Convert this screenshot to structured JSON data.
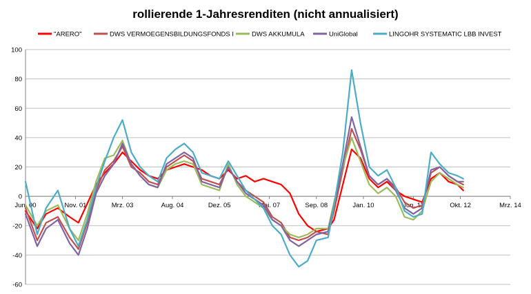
{
  "chart_data": {
    "type": "line",
    "title": "rollierende 1-Jahresrenditen (nicht annualisiert)",
    "xlabel": "",
    "ylabel": "",
    "ylim": [
      -60,
      100
    ],
    "y_ticks": [
      100,
      80,
      60,
      40,
      20,
      0,
      -20,
      -40,
      -60
    ],
    "x_range": [
      "2000-06",
      "2014-03"
    ],
    "x_ticks": [
      {
        "label": "Jun. 00",
        "date": "2000-06"
      },
      {
        "label": "Nov. 01",
        "date": "2001-11"
      },
      {
        "label": "Mrz. 03",
        "date": "2003-03"
      },
      {
        "label": "Aug. 04",
        "date": "2004-08"
      },
      {
        "label": "Dez. 05",
        "date": "2005-12"
      },
      {
        "label": "Mai. 07",
        "date": "2007-05"
      },
      {
        "label": "Sep. 08",
        "date": "2008-09"
      },
      {
        "label": "Jan. 10",
        "date": "2010-01"
      },
      {
        "label": "Jun. 11",
        "date": "2011-06"
      },
      {
        "label": "Okt. 12",
        "date": "2012-10"
      },
      {
        "label": "Mrz. 14",
        "date": "2014-03"
      }
    ],
    "grid": "horizontal",
    "legend_position": "top",
    "series": [
      {
        "name": "\"ARERO\"",
        "color": "#ff0000",
        "points": [
          [
            "2000-06",
            -10
          ],
          [
            "2000-10",
            -22
          ],
          [
            "2001-01",
            -12
          ],
          [
            "2001-05",
            -8
          ],
          [
            "2001-09",
            -14
          ],
          [
            "2001-12",
            -18
          ],
          [
            "2002-03",
            -5
          ],
          [
            "2002-06",
            8
          ],
          [
            "2002-09",
            16
          ],
          [
            "2002-12",
            22
          ],
          [
            "2003-03",
            30
          ],
          [
            "2003-06",
            24
          ],
          [
            "2003-09",
            18
          ],
          [
            "2003-12",
            14
          ],
          [
            "2004-03",
            12
          ],
          [
            "2004-06",
            18
          ],
          [
            "2004-09",
            20
          ],
          [
            "2004-12",
            22
          ],
          [
            "2005-03",
            20
          ],
          [
            "2005-06",
            18
          ],
          [
            "2005-09",
            14
          ],
          [
            "2005-12",
            12
          ],
          [
            "2006-03",
            18
          ],
          [
            "2006-06",
            12
          ],
          [
            "2006-09",
            14
          ],
          [
            "2006-12",
            10
          ],
          [
            "2007-03",
            12
          ],
          [
            "2007-06",
            10
          ],
          [
            "2007-09",
            8
          ],
          [
            "2007-12",
            2
          ],
          [
            "2008-03",
            -12
          ],
          [
            "2008-06",
            -20
          ],
          [
            "2008-09",
            -24
          ],
          [
            "2009-01",
            -22
          ],
          [
            "2009-03",
            -16
          ],
          [
            "2009-06",
            8
          ],
          [
            "2009-09",
            32
          ],
          [
            "2009-12",
            26
          ],
          [
            "2010-03",
            12
          ],
          [
            "2010-06",
            6
          ],
          [
            "2010-09",
            10
          ],
          [
            "2010-12",
            4
          ],
          [
            "2011-03",
            0
          ],
          [
            "2011-06",
            -2
          ],
          [
            "2011-09",
            -4
          ],
          [
            "2011-12",
            12
          ],
          [
            "2012-03",
            16
          ],
          [
            "2012-06",
            10
          ],
          [
            "2012-09",
            8
          ],
          [
            "2012-11",
            4
          ]
        ]
      },
      {
        "name": "DWS VERMOEGENSBILDUNGSFONDS  I",
        "color": "#c0504d",
        "points": [
          [
            "2000-06",
            -8
          ],
          [
            "2000-10",
            -30
          ],
          [
            "2001-01",
            -18
          ],
          [
            "2001-05",
            -14
          ],
          [
            "2001-09",
            -28
          ],
          [
            "2001-12",
            -36
          ],
          [
            "2002-03",
            -18
          ],
          [
            "2002-06",
            4
          ],
          [
            "2002-09",
            18
          ],
          [
            "2002-12",
            24
          ],
          [
            "2003-03",
            34
          ],
          [
            "2003-06",
            20
          ],
          [
            "2003-09",
            16
          ],
          [
            "2003-12",
            10
          ],
          [
            "2004-03",
            8
          ],
          [
            "2004-06",
            20
          ],
          [
            "2004-09",
            24
          ],
          [
            "2004-12",
            28
          ],
          [
            "2005-03",
            24
          ],
          [
            "2005-06",
            12
          ],
          [
            "2005-09",
            10
          ],
          [
            "2005-12",
            8
          ],
          [
            "2006-03",
            20
          ],
          [
            "2006-06",
            10
          ],
          [
            "2006-09",
            4
          ],
          [
            "2006-12",
            0
          ],
          [
            "2007-03",
            -4
          ],
          [
            "2007-06",
            -14
          ],
          [
            "2007-09",
            -18
          ],
          [
            "2007-12",
            -28
          ],
          [
            "2008-03",
            -30
          ],
          [
            "2008-06",
            -28
          ],
          [
            "2008-09",
            -24
          ],
          [
            "2009-01",
            -26
          ],
          [
            "2009-03",
            -10
          ],
          [
            "2009-06",
            18
          ],
          [
            "2009-09",
            46
          ],
          [
            "2009-12",
            32
          ],
          [
            "2010-03",
            14
          ],
          [
            "2010-06",
            8
          ],
          [
            "2010-09",
            12
          ],
          [
            "2010-12",
            6
          ],
          [
            "2011-03",
            -4
          ],
          [
            "2011-06",
            -8
          ],
          [
            "2011-09",
            -6
          ],
          [
            "2011-12",
            16
          ],
          [
            "2012-03",
            20
          ],
          [
            "2012-06",
            14
          ],
          [
            "2012-09",
            10
          ],
          [
            "2012-11",
            8
          ]
        ]
      },
      {
        "name": "DWS AKKUMULA",
        "color": "#9bbb59",
        "points": [
          [
            "2000-06",
            -6
          ],
          [
            "2000-10",
            -20
          ],
          [
            "2001-01",
            -10
          ],
          [
            "2001-05",
            -6
          ],
          [
            "2001-09",
            -22
          ],
          [
            "2001-12",
            -30
          ],
          [
            "2002-03",
            -12
          ],
          [
            "2002-06",
            10
          ],
          [
            "2002-09",
            26
          ],
          [
            "2002-12",
            28
          ],
          [
            "2003-03",
            38
          ],
          [
            "2003-06",
            22
          ],
          [
            "2003-09",
            14
          ],
          [
            "2003-12",
            8
          ],
          [
            "2004-03",
            6
          ],
          [
            "2004-06",
            18
          ],
          [
            "2004-09",
            22
          ],
          [
            "2004-12",
            24
          ],
          [
            "2005-03",
            22
          ],
          [
            "2005-06",
            8
          ],
          [
            "2005-09",
            6
          ],
          [
            "2005-12",
            4
          ],
          [
            "2006-03",
            22
          ],
          [
            "2006-06",
            8
          ],
          [
            "2006-09",
            0
          ],
          [
            "2006-12",
            -4
          ],
          [
            "2007-03",
            -8
          ],
          [
            "2007-06",
            -16
          ],
          [
            "2007-09",
            -20
          ],
          [
            "2007-12",
            -26
          ],
          [
            "2008-03",
            -28
          ],
          [
            "2008-06",
            -26
          ],
          [
            "2008-09",
            -22
          ],
          [
            "2009-01",
            -22
          ],
          [
            "2009-03",
            -4
          ],
          [
            "2009-06",
            20
          ],
          [
            "2009-09",
            40
          ],
          [
            "2009-12",
            24
          ],
          [
            "2010-03",
            8
          ],
          [
            "2010-06",
            2
          ],
          [
            "2010-09",
            6
          ],
          [
            "2010-12",
            0
          ],
          [
            "2011-03",
            -14
          ],
          [
            "2011-06",
            -16
          ],
          [
            "2011-09",
            -10
          ],
          [
            "2011-12",
            10
          ],
          [
            "2012-03",
            16
          ],
          [
            "2012-06",
            12
          ],
          [
            "2012-09",
            8
          ],
          [
            "2012-11",
            6
          ]
        ]
      },
      {
        "name": "UniGlobal",
        "color": "#8064a2",
        "points": [
          [
            "2000-06",
            -12
          ],
          [
            "2000-10",
            -34
          ],
          [
            "2001-01",
            -22
          ],
          [
            "2001-05",
            -16
          ],
          [
            "2001-09",
            -32
          ],
          [
            "2001-12",
            -40
          ],
          [
            "2002-03",
            -22
          ],
          [
            "2002-06",
            2
          ],
          [
            "2002-09",
            14
          ],
          [
            "2002-12",
            22
          ],
          [
            "2003-03",
            36
          ],
          [
            "2003-06",
            22
          ],
          [
            "2003-09",
            14
          ],
          [
            "2003-12",
            8
          ],
          [
            "2004-03",
            6
          ],
          [
            "2004-06",
            22
          ],
          [
            "2004-09",
            26
          ],
          [
            "2004-12",
            30
          ],
          [
            "2005-03",
            26
          ],
          [
            "2005-06",
            10
          ],
          [
            "2005-09",
            8
          ],
          [
            "2005-12",
            6
          ],
          [
            "2006-03",
            20
          ],
          [
            "2006-06",
            10
          ],
          [
            "2006-09",
            2
          ],
          [
            "2006-12",
            -2
          ],
          [
            "2007-03",
            -6
          ],
          [
            "2007-06",
            -16
          ],
          [
            "2007-09",
            -20
          ],
          [
            "2007-12",
            -30
          ],
          [
            "2008-03",
            -34
          ],
          [
            "2008-06",
            -30
          ],
          [
            "2008-09",
            -26
          ],
          [
            "2009-01",
            -24
          ],
          [
            "2009-03",
            -6
          ],
          [
            "2009-06",
            22
          ],
          [
            "2009-09",
            54
          ],
          [
            "2009-12",
            34
          ],
          [
            "2010-03",
            14
          ],
          [
            "2010-06",
            8
          ],
          [
            "2010-09",
            12
          ],
          [
            "2010-12",
            4
          ],
          [
            "2011-03",
            -8
          ],
          [
            "2011-06",
            -12
          ],
          [
            "2011-09",
            -8
          ],
          [
            "2011-12",
            18
          ],
          [
            "2012-03",
            20
          ],
          [
            "2012-06",
            14
          ],
          [
            "2012-09",
            10
          ],
          [
            "2012-11",
            10
          ]
        ]
      },
      {
        "name": "LINGOHR SYSTEMATIC  LBB INVEST",
        "color": "#4bacc6",
        "points": [
          [
            "2000-06",
            10
          ],
          [
            "2000-10",
            -26
          ],
          [
            "2001-01",
            -8
          ],
          [
            "2001-05",
            4
          ],
          [
            "2001-09",
            -22
          ],
          [
            "2001-12",
            -34
          ],
          [
            "2002-03",
            -16
          ],
          [
            "2002-06",
            6
          ],
          [
            "2002-09",
            24
          ],
          [
            "2002-12",
            40
          ],
          [
            "2003-03",
            52
          ],
          [
            "2003-06",
            30
          ],
          [
            "2003-09",
            20
          ],
          [
            "2003-12",
            14
          ],
          [
            "2004-03",
            10
          ],
          [
            "2004-06",
            26
          ],
          [
            "2004-09",
            32
          ],
          [
            "2004-12",
            36
          ],
          [
            "2005-03",
            30
          ],
          [
            "2005-06",
            16
          ],
          [
            "2005-09",
            14
          ],
          [
            "2005-12",
            12
          ],
          [
            "2006-03",
            24
          ],
          [
            "2006-06",
            14
          ],
          [
            "2006-09",
            4
          ],
          [
            "2006-12",
            -2
          ],
          [
            "2007-03",
            -8
          ],
          [
            "2007-06",
            -20
          ],
          [
            "2007-09",
            -26
          ],
          [
            "2007-12",
            -40
          ],
          [
            "2008-03",
            -48
          ],
          [
            "2008-06",
            -44
          ],
          [
            "2008-09",
            -30
          ],
          [
            "2009-01",
            -28
          ],
          [
            "2009-03",
            -6
          ],
          [
            "2009-06",
            30
          ],
          [
            "2009-09",
            86
          ],
          [
            "2009-12",
            50
          ],
          [
            "2010-03",
            20
          ],
          [
            "2010-06",
            14
          ],
          [
            "2010-09",
            18
          ],
          [
            "2010-12",
            6
          ],
          [
            "2011-03",
            -10
          ],
          [
            "2011-06",
            -14
          ],
          [
            "2011-09",
            -12
          ],
          [
            "2011-12",
            30
          ],
          [
            "2012-03",
            22
          ],
          [
            "2012-06",
            16
          ],
          [
            "2012-09",
            14
          ],
          [
            "2012-11",
            12
          ]
        ]
      }
    ]
  }
}
